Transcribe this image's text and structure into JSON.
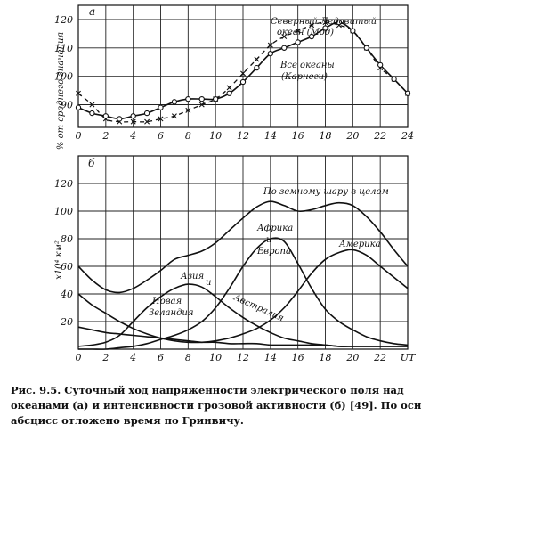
{
  "chart_data": [
    {
      "type": "line",
      "panel_label": "а",
      "ylabel": "% от среднего значения",
      "x_ticks": [
        "0",
        "2",
        "4",
        "6",
        "8",
        "10",
        "12",
        "14",
        "16",
        "18",
        "20",
        "22",
        "24"
      ],
      "y_ticks": [
        "90",
        "100",
        "110",
        "120"
      ],
      "xlim": [
        0,
        24
      ],
      "ylim": [
        82,
        125
      ],
      "grid": true,
      "series": [
        {
          "annotation": [
            "Северный Ледовитый",
            "океан (Мод)"
          ],
          "marker": "x",
          "style": "dashed",
          "x": [
            0,
            1,
            2,
            3,
            4,
            5,
            6,
            7,
            8,
            9,
            10,
            11,
            12,
            13,
            14,
            15,
            16,
            17,
            18,
            19,
            20,
            21,
            22,
            23,
            24
          ],
          "y": [
            94,
            90,
            85,
            84,
            84,
            84,
            85,
            86,
            88,
            90,
            92,
            96,
            101,
            106,
            111,
            114,
            116,
            118,
            119,
            118,
            116,
            110,
            103,
            99,
            94
          ]
        },
        {
          "annotation": [
            "Все океаны",
            "(Карнеги)"
          ],
          "marker": "o",
          "style": "solid",
          "x": [
            0,
            1,
            2,
            3,
            4,
            5,
            6,
            7,
            8,
            9,
            10,
            11,
            12,
            13,
            14,
            15,
            16,
            17,
            18,
            19,
            20,
            21,
            22,
            23,
            24
          ],
          "y": [
            89,
            87,
            86,
            85,
            86,
            87,
            89,
            91,
            92,
            92,
            92,
            94,
            98,
            103,
            108,
            110,
            112,
            114,
            117,
            119,
            116,
            110,
            104,
            99,
            94
          ]
        }
      ]
    },
    {
      "type": "line",
      "panel_label": "б",
      "ylabel": "х10⁴ км²",
      "x_ticks": [
        "0",
        "2",
        "4",
        "6",
        "8",
        "10",
        "12",
        "14",
        "16",
        "18",
        "20",
        "22",
        "UT"
      ],
      "y_ticks": [
        "20",
        "40",
        "60",
        "80",
        "100",
        "120"
      ],
      "xlim": [
        0,
        24
      ],
      "ylim": [
        0,
        140
      ],
      "grid": true,
      "series": [
        {
          "annotation": [
            "По земному шару в целом"
          ],
          "x": [
            0,
            1,
            2,
            3,
            4,
            5,
            6,
            7,
            8,
            9,
            10,
            11,
            12,
            13,
            14,
            15,
            16,
            17,
            18,
            19,
            20,
            21,
            22,
            23,
            24
          ],
          "y": [
            60,
            50,
            43,
            41,
            44,
            50,
            57,
            65,
            68,
            71,
            77,
            86,
            95,
            103,
            107,
            104,
            100,
            101,
            104,
            106,
            104,
            96,
            85,
            72,
            60
          ]
        },
        {
          "annotation": [
            "Африка",
            "и",
            "Европа"
          ],
          "x": [
            0,
            1,
            2,
            3,
            4,
            5,
            6,
            7,
            8,
            9,
            10,
            11,
            12,
            13,
            14,
            15,
            16,
            17,
            18,
            19,
            20,
            21,
            22,
            23,
            24
          ],
          "y": [
            0,
            0,
            0,
            1,
            2,
            4,
            7,
            10,
            14,
            20,
            30,
            44,
            60,
            73,
            80,
            78,
            62,
            44,
            29,
            20,
            14,
            9,
            6,
            4,
            3
          ]
        },
        {
          "annotation": [
            "Америка"
          ],
          "x": [
            0,
            1,
            2,
            3,
            4,
            5,
            6,
            7,
            8,
            9,
            10,
            11,
            12,
            13,
            14,
            15,
            16,
            17,
            18,
            19,
            20,
            21,
            22,
            23,
            24
          ],
          "y": [
            40,
            32,
            26,
            20,
            15,
            11,
            8,
            6,
            5,
            5,
            6,
            8,
            11,
            15,
            21,
            30,
            42,
            55,
            65,
            70,
            72,
            68,
            60,
            52,
            44
          ]
        },
        {
          "annotation": [
            "Азия",
            "и",
            "Австралия"
          ],
          "x": [
            0,
            1,
            2,
            3,
            4,
            5,
            6,
            7,
            8,
            9,
            10,
            11,
            12,
            13,
            14,
            15,
            16,
            17,
            18,
            19,
            20,
            21,
            22,
            23,
            24
          ],
          "y": [
            2,
            3,
            5,
            10,
            20,
            30,
            38,
            44,
            47,
            45,
            38,
            30,
            23,
            17,
            12,
            8,
            6,
            4,
            3,
            2,
            2,
            2,
            2,
            2,
            2
          ]
        },
        {
          "annotation": [
            "Новая",
            "Зеландия"
          ],
          "x": [
            0,
            1,
            2,
            3,
            4,
            5,
            6,
            7,
            8,
            9,
            10,
            11,
            12,
            13,
            14,
            15,
            16,
            17,
            18,
            19,
            20,
            21,
            22,
            23,
            24
          ],
          "y": [
            16,
            14,
            12,
            11,
            10,
            9,
            8,
            7,
            6,
            5,
            5,
            4,
            4,
            4,
            3,
            3,
            3,
            3,
            3,
            2,
            2,
            2,
            2,
            2,
            2
          ]
        }
      ]
    }
  ],
  "caption": "Рис. 9.5. Суточный ход напряженности электрического поля над океанами (а) и интенсивности грозовой активности (б) [49]. По оси абсцисс отложено время по Гринвичу."
}
